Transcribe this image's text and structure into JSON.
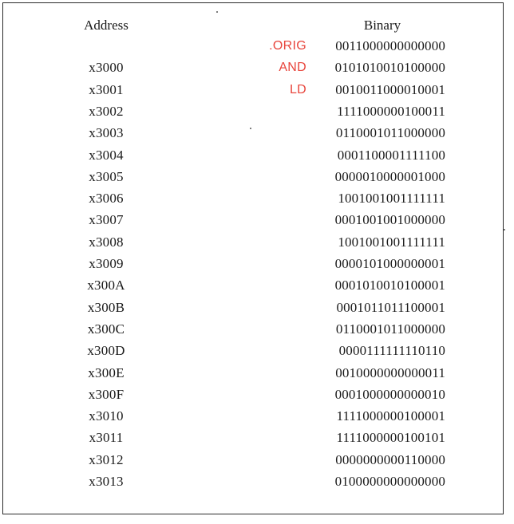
{
  "table": {
    "header": {
      "address": "Address",
      "binary": "Binary"
    },
    "rows": [
      {
        "address": "",
        "binary": "0011000000000000",
        "annotation": ".ORIG"
      },
      {
        "address": "x3000",
        "binary": "0101010010100000",
        "annotation": "AND"
      },
      {
        "address": "x3001",
        "binary": "0010011000010001",
        "annotation": "LD"
      },
      {
        "address": "x3002",
        "binary": "1111000000100011",
        "annotation": ""
      },
      {
        "address": "x3003",
        "binary": "0110001011000000",
        "annotation": ""
      },
      {
        "address": "x3004",
        "binary": "0001100001111100",
        "annotation": ""
      },
      {
        "address": "x3005",
        "binary": "0000010000001000",
        "annotation": ""
      },
      {
        "address": "x3006",
        "binary": "1001001001111111",
        "annotation": ""
      },
      {
        "address": "x3007",
        "binary": "0001001001000000",
        "annotation": ""
      },
      {
        "address": "x3008",
        "binary": "1001001001111111",
        "annotation": ""
      },
      {
        "address": "x3009",
        "binary": "0000101000000001",
        "annotation": ""
      },
      {
        "address": "x300A",
        "binary": "0001010010100001",
        "annotation": ""
      },
      {
        "address": "x300B",
        "binary": "0001011011100001",
        "annotation": ""
      },
      {
        "address": "x300C",
        "binary": "0110001011000000",
        "annotation": ""
      },
      {
        "address": "x300D",
        "binary": "0000111111110110",
        "annotation": ""
      },
      {
        "address": "x300E",
        "binary": "0010000000000011",
        "annotation": ""
      },
      {
        "address": "x300F",
        "binary": "0001000000000010",
        "annotation": ""
      },
      {
        "address": "x3010",
        "binary": "1111000000100001",
        "annotation": ""
      },
      {
        "address": "x3011",
        "binary": "1111000000100101",
        "annotation": ""
      },
      {
        "address": "x3012",
        "binary": "0000000000110000",
        "annotation": ""
      },
      {
        "address": "x3013",
        "binary": "0100000000000000",
        "annotation": ""
      }
    ]
  },
  "colors": {
    "annotation": "#e8453c",
    "text": "#1a1a1a",
    "border": "#2b2b2b"
  }
}
